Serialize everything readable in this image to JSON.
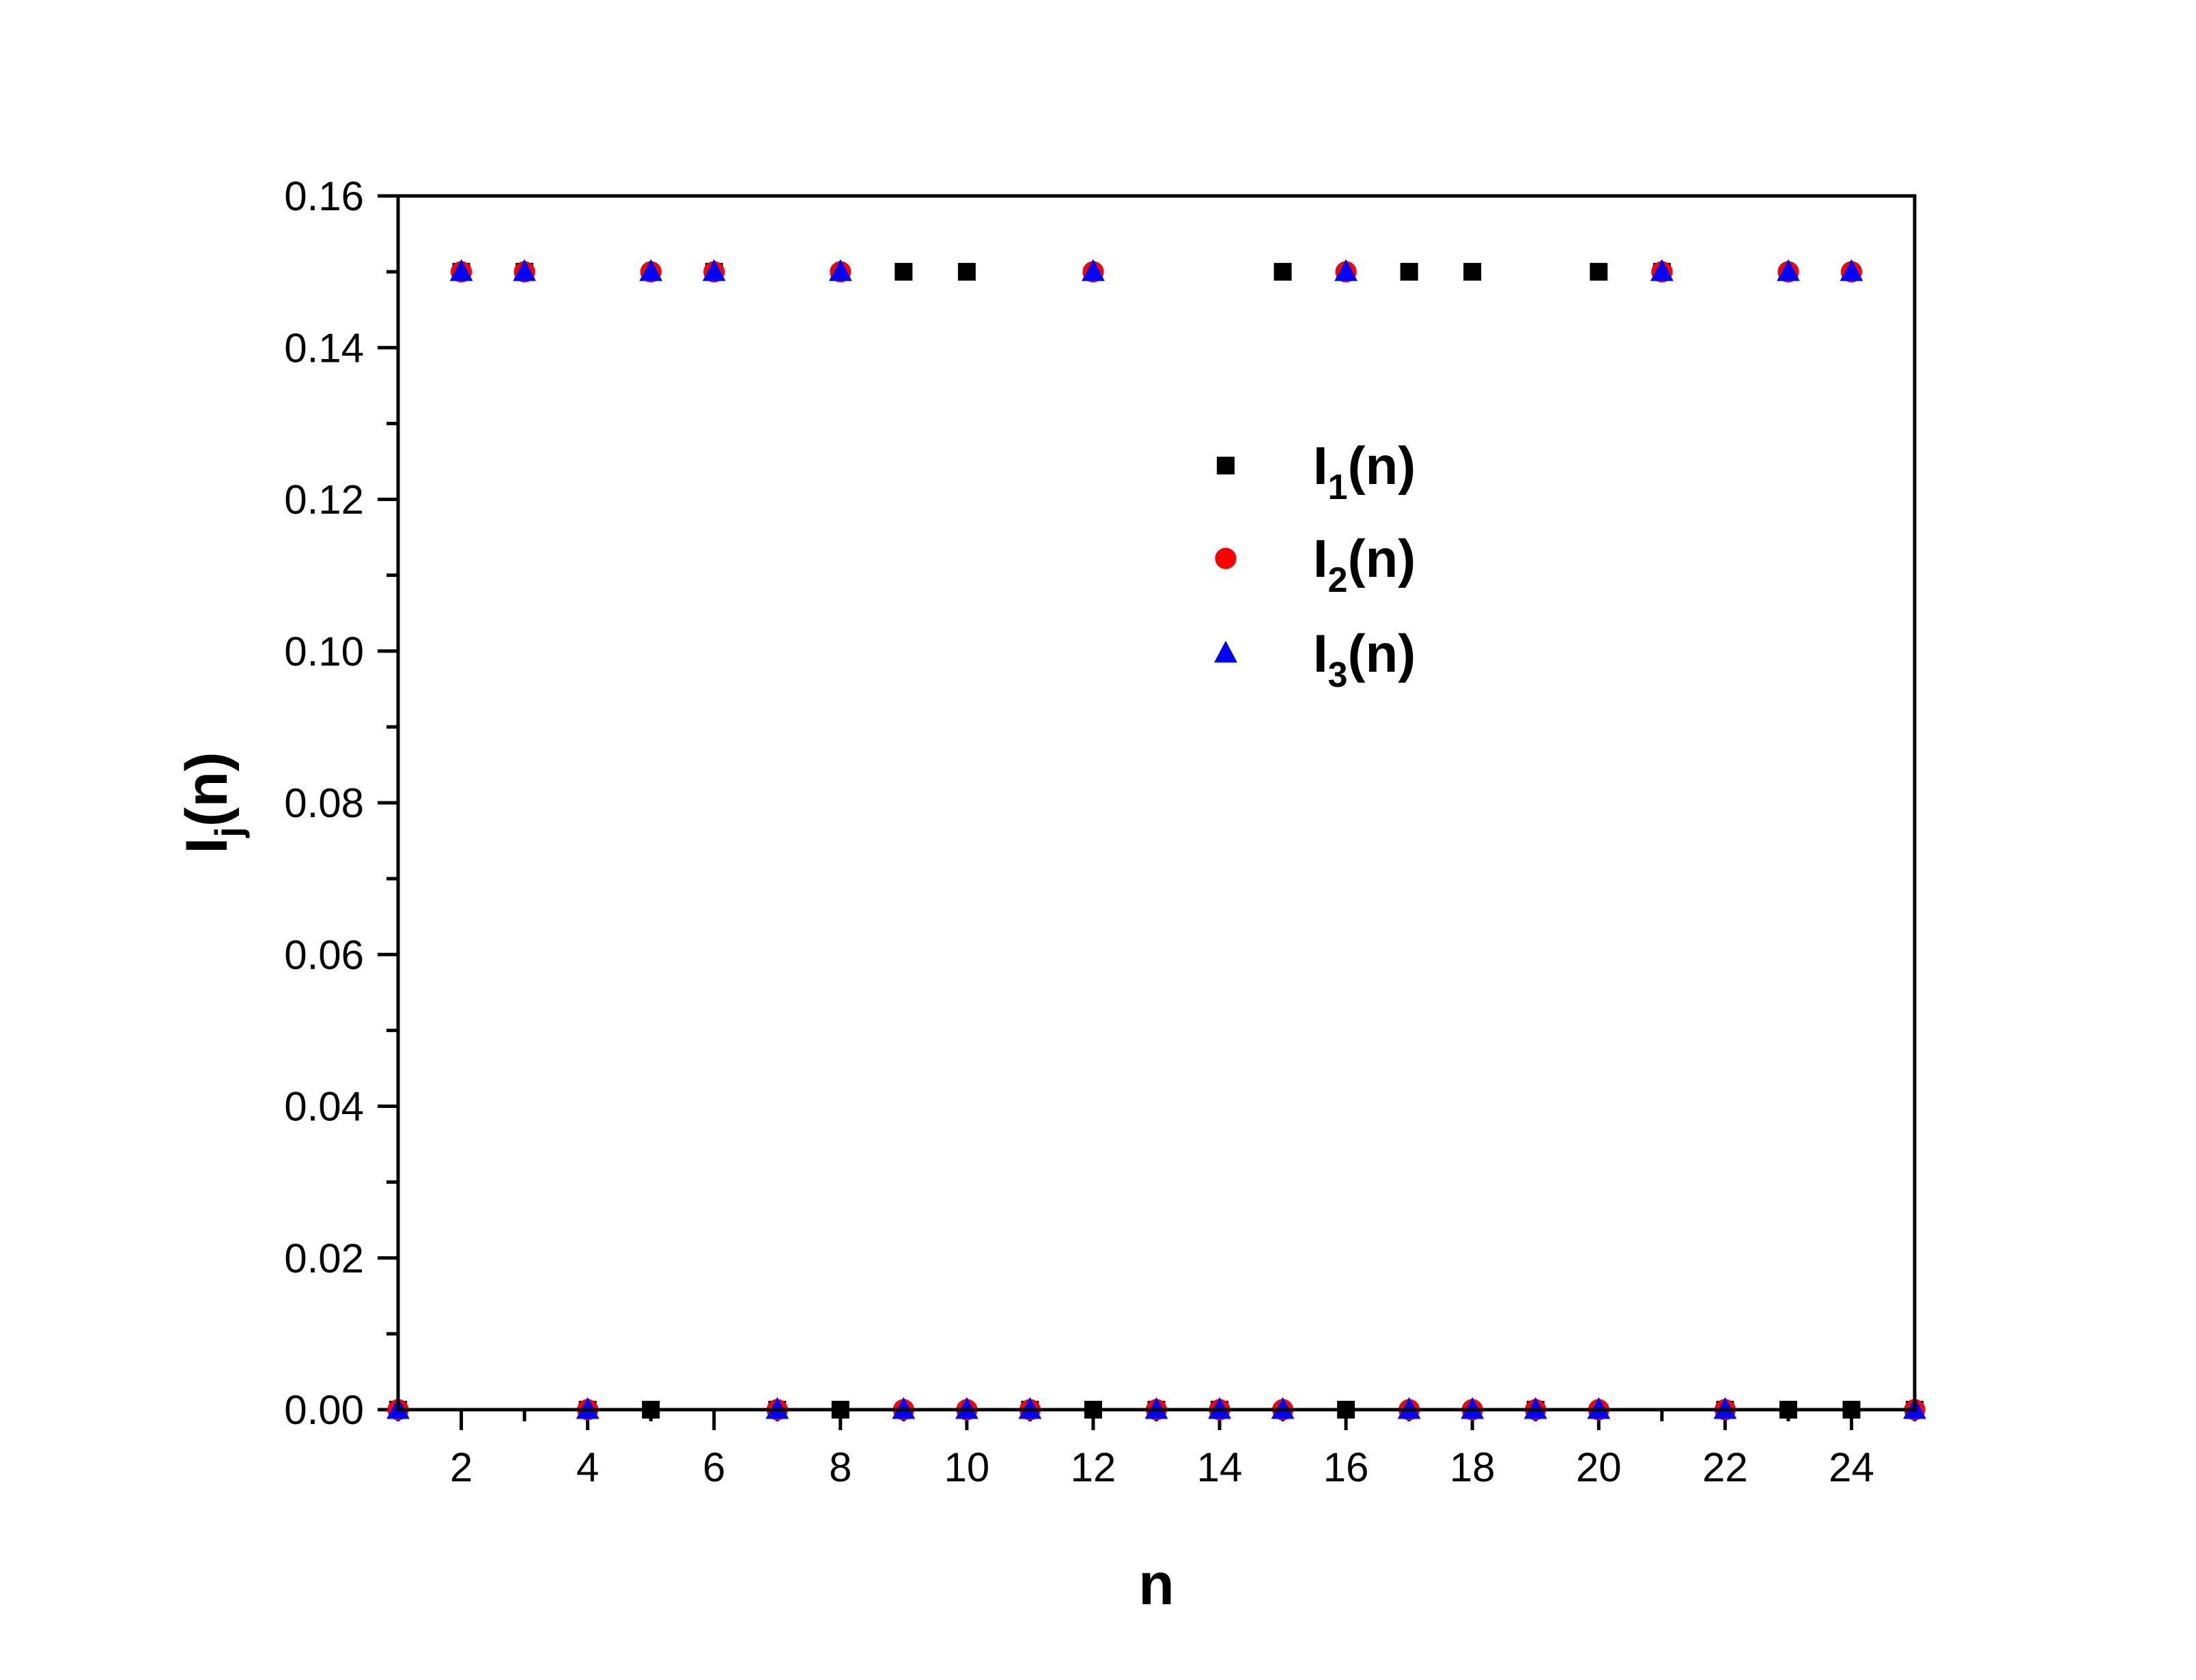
{
  "chart_data": {
    "type": "scatter",
    "xlabel": "n",
    "ylabel": {
      "main": "I",
      "sub": "j",
      "rest": "(n)"
    },
    "xlim": [
      1,
      25
    ],
    "ylim": [
      0,
      0.16
    ],
    "x_ticks": [
      2,
      4,
      6,
      8,
      10,
      12,
      14,
      16,
      18,
      20,
      22,
      24
    ],
    "x_tick_labels": [
      "2",
      "4",
      "6",
      "8",
      "10",
      "12",
      "14",
      "16",
      "18",
      "20",
      "22",
      "24"
    ],
    "y_ticks": [
      0,
      0.02,
      0.04,
      0.06,
      0.08,
      0.1,
      0.12,
      0.14,
      0.16
    ],
    "y_tick_labels": [
      "0.00",
      "0.02",
      "0.04",
      "0.06",
      "0.08",
      "0.10",
      "0.12",
      "0.14",
      "0.16"
    ],
    "grid": false,
    "legend_position": "upper-center-right",
    "x": [
      1,
      2,
      3,
      4,
      5,
      6,
      7,
      8,
      9,
      10,
      11,
      12,
      13,
      14,
      15,
      16,
      17,
      18,
      19,
      20,
      21,
      22,
      23,
      24,
      25
    ],
    "series": [
      {
        "name": {
          "main": "I",
          "sub": "1",
          "rest": "(n)"
        },
        "marker": "square",
        "color": "#000000",
        "values": [
          0,
          0.15,
          0.15,
          0,
          0,
          0.15,
          0,
          0,
          0.15,
          0.15,
          0,
          0,
          0,
          0,
          0.15,
          0,
          0.15,
          0.15,
          0,
          0.15,
          0.15,
          0,
          0,
          0,
          0
        ]
      },
      {
        "name": {
          "main": "I",
          "sub": "2",
          "rest": "(n)"
        },
        "marker": "circle",
        "color": "#ff0000",
        "values": [
          0,
          0.15,
          0.15,
          0,
          0.15,
          0.15,
          0,
          0.15,
          0,
          0,
          0,
          0.15,
          0,
          0,
          0,
          0.15,
          0,
          0,
          0,
          0,
          0.15,
          0,
          0.15,
          0.15,
          0
        ]
      },
      {
        "name": {
          "main": "I",
          "sub": "3",
          "rest": "(n)"
        },
        "marker": "triangle",
        "color": "#0000ff",
        "values": [
          0,
          0.15,
          0.15,
          0,
          0.15,
          0.15,
          0,
          0.15,
          0,
          0,
          0,
          0.15,
          0,
          0,
          0,
          0.15,
          0,
          0,
          0,
          0,
          0.15,
          0,
          0.15,
          0.15,
          0
        ]
      }
    ]
  }
}
